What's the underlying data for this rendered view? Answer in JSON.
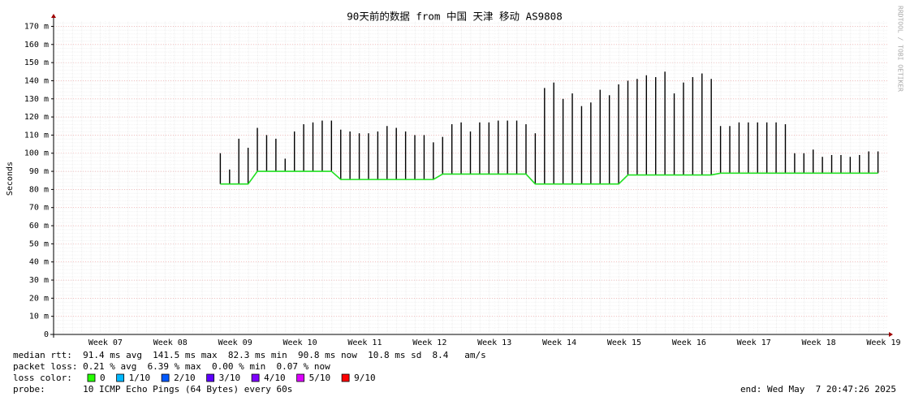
{
  "chart_data": {
    "type": "line",
    "title": "90天前的数据 from 中国 天津 移动 AS9808",
    "ylabel": "Seconds",
    "side_note": "RRDTOOL / TOBI OETIKER",
    "xlim": [
      0,
      90
    ],
    "xticks": [
      {
        "value": 5.6,
        "label": "Week 07"
      },
      {
        "value": 12.6,
        "label": "Week 08"
      },
      {
        "value": 19.6,
        "label": "Week 09"
      },
      {
        "value": 26.6,
        "label": "Week 10"
      },
      {
        "value": 33.6,
        "label": "Week 11"
      },
      {
        "value": 40.6,
        "label": "Week 12"
      },
      {
        "value": 47.6,
        "label": "Week 13"
      },
      {
        "value": 54.6,
        "label": "Week 14"
      },
      {
        "value": 61.6,
        "label": "Week 15"
      },
      {
        "value": 68.6,
        "label": "Week 16"
      },
      {
        "value": 75.6,
        "label": "Week 17"
      },
      {
        "value": 82.6,
        "label": "Week 18"
      },
      {
        "value": 89.6,
        "label": "Week 19"
      }
    ],
    "ylim": [
      0,
      0.172
    ],
    "yticks": [
      0,
      {
        "value": 0.01,
        "label": "10 m"
      },
      {
        "value": 0.02,
        "label": "20 m"
      },
      {
        "value": 0.03,
        "label": "30 m"
      },
      {
        "value": 0.04,
        "label": "40 m"
      },
      {
        "value": 0.05,
        "label": "50 m"
      },
      {
        "value": 0.06,
        "label": "60 m"
      },
      {
        "value": 0.07,
        "label": "70 m"
      },
      {
        "value": 0.08,
        "label": "80 m"
      },
      {
        "value": 0.09,
        "label": "90 m"
      },
      {
        "value": 0.1,
        "label": "100 m"
      },
      {
        "value": 0.11,
        "label": "110 m"
      },
      {
        "value": 0.12,
        "label": "120 m"
      },
      {
        "value": 0.13,
        "label": "130 m"
      },
      {
        "value": 0.14,
        "label": "140 m"
      },
      {
        "value": 0.15,
        "label": "150 m"
      },
      {
        "value": 0.16,
        "label": "160 m"
      },
      {
        "value": 0.17,
        "label": "170 m"
      }
    ],
    "grid": true,
    "x": [
      18,
      19,
      20,
      21,
      22,
      23,
      24,
      25,
      26,
      27,
      28,
      29,
      30,
      31,
      32,
      33,
      34,
      35,
      36,
      37,
      38,
      39,
      40,
      41,
      42,
      43,
      44,
      45,
      46,
      47,
      48,
      49,
      50,
      51,
      52,
      53,
      54,
      55,
      56,
      57,
      58,
      59,
      60,
      61,
      62,
      63,
      64,
      65,
      66,
      67,
      68,
      69,
      70,
      71,
      72,
      73,
      74,
      75,
      76,
      77,
      78,
      79,
      80,
      81,
      82,
      83,
      84,
      85,
      86,
      87,
      88,
      89
    ],
    "series": [
      {
        "color": "#20e020",
        "values": [
          0.083,
          0.083,
          0.083,
          0.083,
          0.09,
          0.09,
          0.09,
          0.09,
          0.09,
          0.09,
          0.09,
          0.09,
          0.09,
          0.0855,
          0.0855,
          0.0855,
          0.0855,
          0.0855,
          0.0855,
          0.0855,
          0.0855,
          0.0855,
          0.0855,
          0.0855,
          0.0885,
          0.0885,
          0.0885,
          0.0885,
          0.0885,
          0.0885,
          0.0885,
          0.0885,
          0.0885,
          0.0885,
          0.083,
          0.083,
          0.083,
          0.083,
          0.083,
          0.083,
          0.083,
          0.083,
          0.083,
          0.083,
          0.088,
          0.088,
          0.088,
          0.088,
          0.088,
          0.088,
          0.088,
          0.088,
          0.088,
          0.088,
          0.089,
          0.089,
          0.089,
          0.089,
          0.089,
          0.089,
          0.089,
          0.089,
          0.089,
          0.089,
          0.089,
          0.089,
          0.089,
          0.089,
          0.089,
          0.089,
          0.089,
          0.089
        ]
      },
      {
        "color": "#000000",
        "values": [
          0.1,
          0.091,
          0.108,
          0.103,
          0.114,
          0.11,
          0.108,
          0.097,
          0.112,
          0.116,
          0.117,
          0.118,
          0.118,
          0.113,
          0.112,
          0.111,
          0.111,
          0.112,
          0.115,
          0.114,
          0.112,
          0.11,
          0.11,
          0.106,
          0.109,
          0.116,
          0.117,
          0.112,
          0.117,
          0.117,
          0.118,
          0.118,
          0.118,
          0.116,
          0.111,
          0.136,
          0.139,
          0.13,
          0.133,
          0.126,
          0.128,
          0.135,
          0.132,
          0.138,
          0.14,
          0.141,
          0.143,
          0.142,
          0.145,
          0.133,
          0.139,
          0.142,
          0.144,
          0.141,
          0.115,
          0.115,
          0.117,
          0.117,
          0.117,
          0.117,
          0.117,
          0.116,
          0.1,
          0.1,
          0.102,
          0.098,
          0.099,
          0.099,
          0.098,
          0.099,
          0.101,
          0.101
        ]
      }
    ],
    "stats": [
      "median rtt:  91.4 ms avg  141.5 ms max  82.3 ms min  90.8 ms now  10.8 ms sd  8.4   am/s",
      "packet loss: 0.21 % avg  6.39 % max  0.00 % min  0.07 % now"
    ],
    "loss_label": "loss color:",
    "loss_colors": [
      {
        "label": "0",
        "color": "#26ff00"
      },
      {
        "label": "1/10",
        "color": "#00b8ff"
      },
      {
        "label": "2/10",
        "color": "#0059ff"
      },
      {
        "label": "3/10",
        "color": "#5e00ff"
      },
      {
        "label": "4/10",
        "color": "#7e00ff"
      },
      {
        "label": "5/10",
        "color": "#dd00ff"
      },
      {
        "label": "9/10",
        "color": "#ff0000"
      }
    ],
    "probe": "probe:       10 ICMP Echo Pings (64 Bytes) every 60s",
    "end": "end: Wed May  7 20:47:26 2025"
  }
}
